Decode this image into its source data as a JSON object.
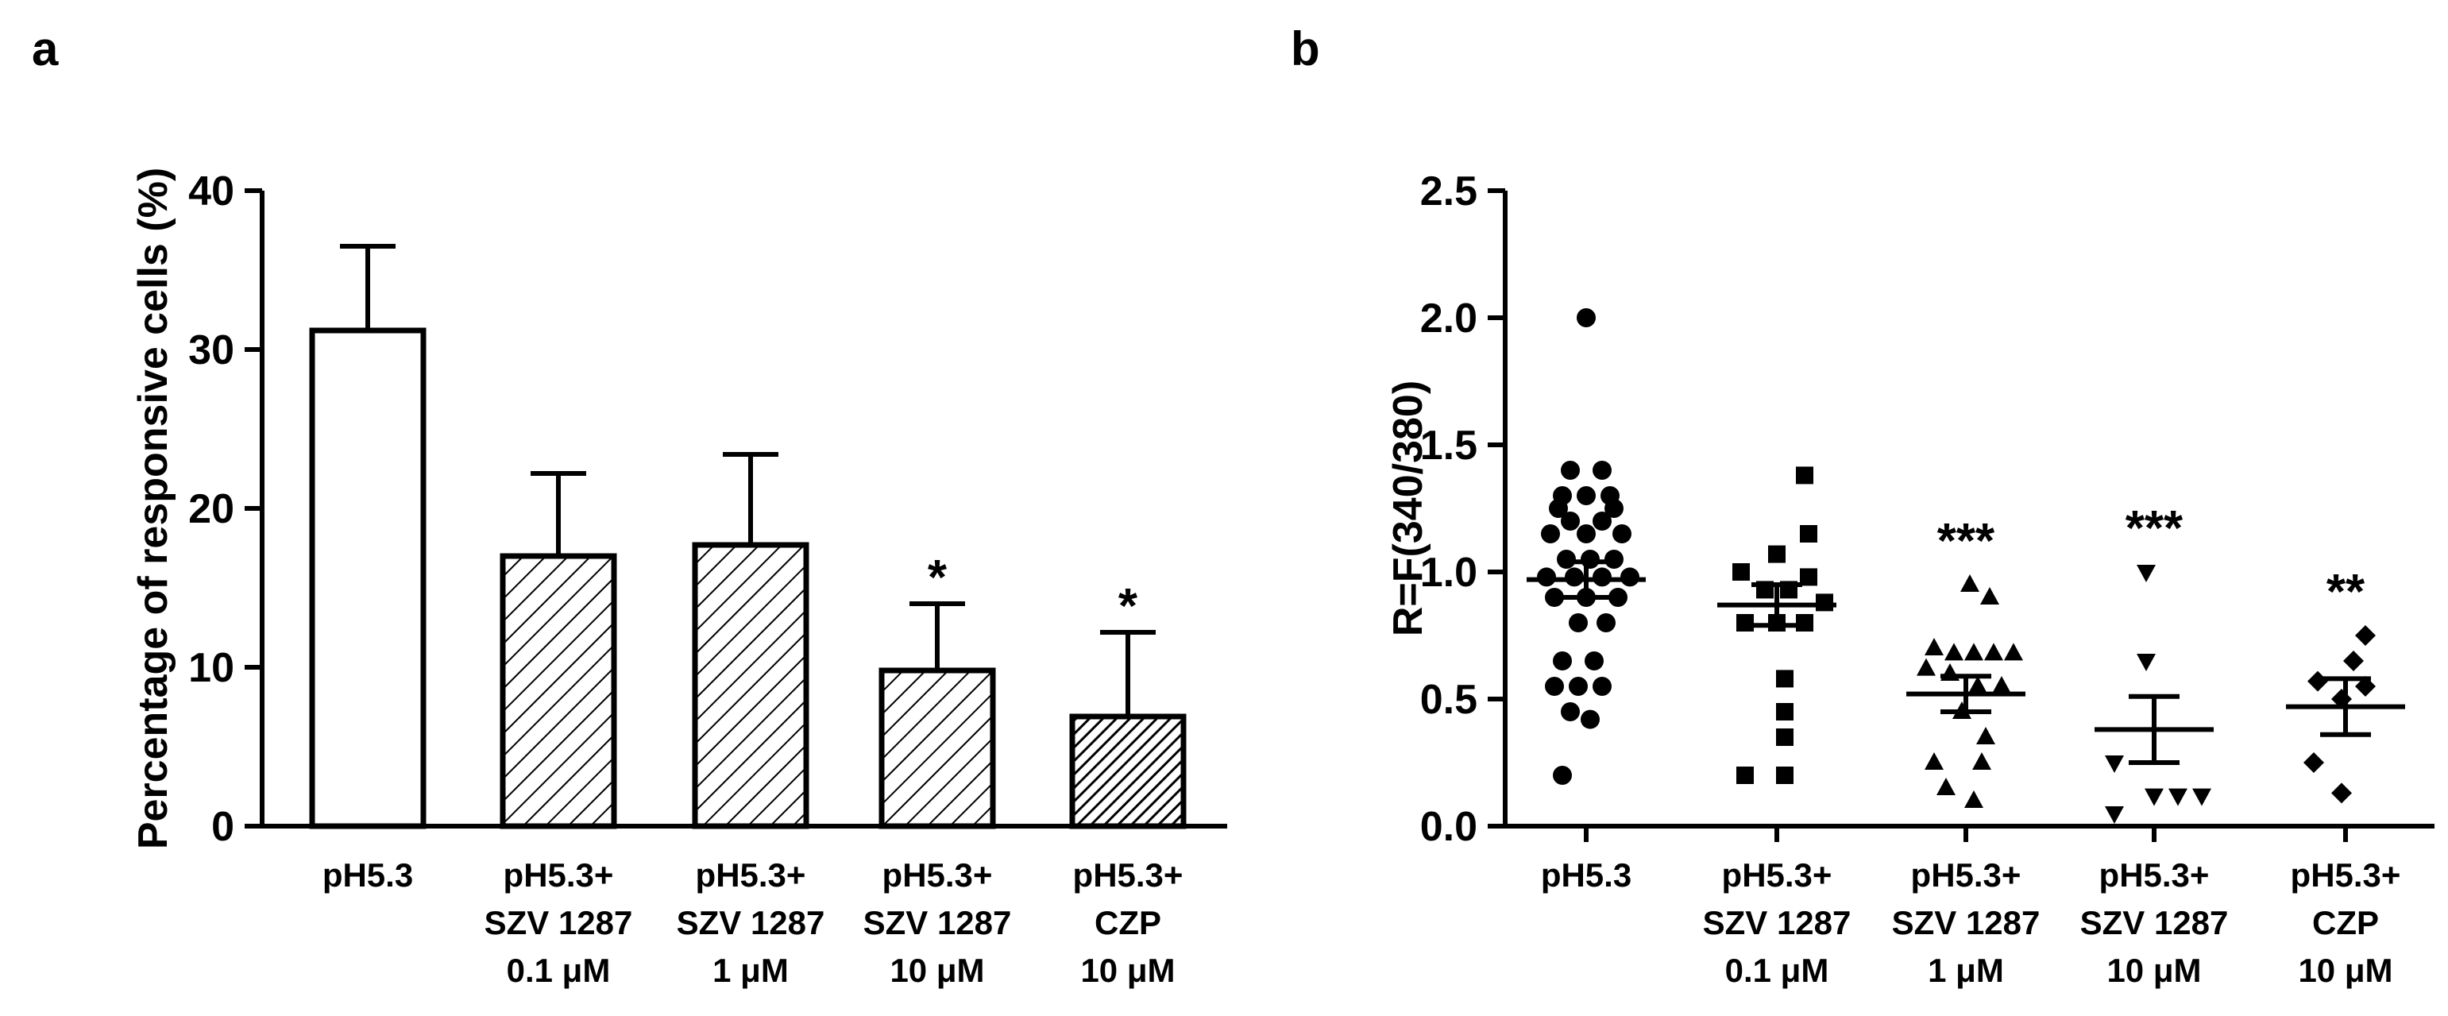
{
  "chart_data": [
    {
      "panel_label": "a",
      "type": "bar",
      "ylabel": "Percentage of responsive cells (%)",
      "ylim": [
        0,
        40
      ],
      "yticks": [
        0,
        10,
        20,
        30,
        40
      ],
      "categories": [
        [
          "pH5.3"
        ],
        [
          "pH5.3+",
          "SZV 1287",
          "0.1 μM"
        ],
        [
          "pH5.3+",
          "SZV 1287",
          "1 μM"
        ],
        [
          "pH5.3+",
          "SZV 1287",
          "10 μM"
        ],
        [
          "pH5.3+",
          "CZP",
          "10 μM"
        ]
      ],
      "values": [
        31.2,
        17.0,
        17.7,
        9.8,
        6.9
      ],
      "errors": [
        5.3,
        5.2,
        5.7,
        4.2,
        5.3
      ],
      "fills": [
        "open",
        "hatched",
        "hatched",
        "hatched",
        "dense-hatched"
      ],
      "significance": [
        "",
        "",
        "",
        "*",
        "*"
      ]
    },
    {
      "panel_label": "b",
      "type": "scatter",
      "ylabel": "R=F(340/380)",
      "ylim": [
        0,
        2.5
      ],
      "yticks": [
        "0.0",
        "0.5",
        "1.0",
        "1.5",
        "2.0",
        "2.5"
      ],
      "categories": [
        [
          "pH5.3"
        ],
        [
          "pH5.3+",
          "SZV 1287",
          "0.1 μM"
        ],
        [
          "pH5.3+",
          "SZV 1287",
          "1 μM"
        ],
        [
          "pH5.3+",
          "SZV 1287",
          "10 μM"
        ],
        [
          "pH5.3+",
          "CZP",
          "10 μM"
        ]
      ],
      "markers": [
        "circle",
        "square",
        "triangle-up",
        "triangle-down",
        "diamond"
      ],
      "means": [
        0.97,
        0.87,
        0.52,
        0.38,
        0.47
      ],
      "sem": [
        0.07,
        0.08,
        0.07,
        0.13,
        0.11
      ],
      "significance": [
        "",
        "",
        "***",
        "***",
        "**"
      ],
      "series": [
        {
          "name": "pH5.3",
          "points": [
            {
              "dx": 0,
              "y": 2.0
            },
            {
              "dx": -20,
              "y": 1.4
            },
            {
              "dx": 20,
              "y": 1.4
            },
            {
              "dx": -30,
              "y": 1.3
            },
            {
              "dx": 0,
              "y": 1.3
            },
            {
              "dx": 30,
              "y": 1.3
            },
            {
              "dx": -35,
              "y": 1.25
            },
            {
              "dx": 35,
              "y": 1.25
            },
            {
              "dx": -20,
              "y": 1.2
            },
            {
              "dx": 20,
              "y": 1.2
            },
            {
              "dx": -45,
              "y": 1.15
            },
            {
              "dx": 0,
              "y": 1.15
            },
            {
              "dx": 45,
              "y": 1.15
            },
            {
              "dx": -25,
              "y": 1.05
            },
            {
              "dx": 5,
              "y": 1.05
            },
            {
              "dx": 35,
              "y": 1.05
            },
            {
              "dx": -50,
              "y": 0.98
            },
            {
              "dx": -15,
              "y": 0.98
            },
            {
              "dx": 20,
              "y": 0.98
            },
            {
              "dx": 55,
              "y": 0.98
            },
            {
              "dx": -40,
              "y": 0.9
            },
            {
              "dx": 0,
              "y": 0.9
            },
            {
              "dx": 40,
              "y": 0.9
            },
            {
              "dx": -10,
              "y": 0.8
            },
            {
              "dx": 25,
              "y": 0.8
            },
            {
              "dx": -30,
              "y": 0.65
            },
            {
              "dx": 10,
              "y": 0.65
            },
            {
              "dx": -40,
              "y": 0.55
            },
            {
              "dx": -10,
              "y": 0.55
            },
            {
              "dx": 20,
              "y": 0.55
            },
            {
              "dx": -20,
              "y": 0.45
            },
            {
              "dx": 5,
              "y": 0.42
            },
            {
              "dx": -30,
              "y": 0.2
            }
          ]
        },
        {
          "name": "pH5.3+ SZV 1287 0.1 μM",
          "points": [
            {
              "dx": 35,
              "y": 1.38
            },
            {
              "dx": 40,
              "y": 1.15
            },
            {
              "dx": 0,
              "y": 1.07
            },
            {
              "dx": -45,
              "y": 1.0
            },
            {
              "dx": 40,
              "y": 0.98
            },
            {
              "dx": -15,
              "y": 0.93
            },
            {
              "dx": 15,
              "y": 0.93
            },
            {
              "dx": 60,
              "y": 0.88
            },
            {
              "dx": -40,
              "y": 0.8
            },
            {
              "dx": 0,
              "y": 0.8
            },
            {
              "dx": 35,
              "y": 0.8
            },
            {
              "dx": 10,
              "y": 0.58
            },
            {
              "dx": 10,
              "y": 0.45
            },
            {
              "dx": 10,
              "y": 0.35
            },
            {
              "dx": -40,
              "y": 0.2
            },
            {
              "dx": 10,
              "y": 0.2
            }
          ]
        },
        {
          "name": "pH5.3+ SZV 1287 1 μM",
          "points": [
            {
              "dx": 5,
              "y": 0.95
            },
            {
              "dx": 30,
              "y": 0.9
            },
            {
              "dx": -40,
              "y": 0.7
            },
            {
              "dx": -15,
              "y": 0.68
            },
            {
              "dx": 10,
              "y": 0.68
            },
            {
              "dx": 35,
              "y": 0.68
            },
            {
              "dx": 60,
              "y": 0.68
            },
            {
              "dx": -50,
              "y": 0.62
            },
            {
              "dx": -20,
              "y": 0.6
            },
            {
              "dx": 15,
              "y": 0.55
            },
            {
              "dx": 45,
              "y": 0.55
            },
            {
              "dx": -5,
              "y": 0.45
            },
            {
              "dx": 25,
              "y": 0.35
            },
            {
              "dx": -40,
              "y": 0.25
            },
            {
              "dx": 20,
              "y": 0.25
            },
            {
              "dx": -25,
              "y": 0.15
            },
            {
              "dx": 10,
              "y": 0.1
            }
          ]
        },
        {
          "name": "pH5.3+ SZV 1287 10 μM",
          "points": [
            {
              "dx": -10,
              "y": 1.0
            },
            {
              "dx": -10,
              "y": 0.65
            },
            {
              "dx": -50,
              "y": 0.25
            },
            {
              "dx": 0,
              "y": 0.12
            },
            {
              "dx": 30,
              "y": 0.12
            },
            {
              "dx": 60,
              "y": 0.12
            },
            {
              "dx": -50,
              "y": 0.05
            }
          ]
        },
        {
          "name": "pH5.3+ CZP 10 μM",
          "points": [
            {
              "dx": 25,
              "y": 0.75
            },
            {
              "dx": 10,
              "y": 0.65
            },
            {
              "dx": -35,
              "y": 0.57
            },
            {
              "dx": 25,
              "y": 0.55
            },
            {
              "dx": -5,
              "y": 0.5
            },
            {
              "dx": -40,
              "y": 0.25
            },
            {
              "dx": -5,
              "y": 0.13
            }
          ]
        }
      ]
    }
  ]
}
